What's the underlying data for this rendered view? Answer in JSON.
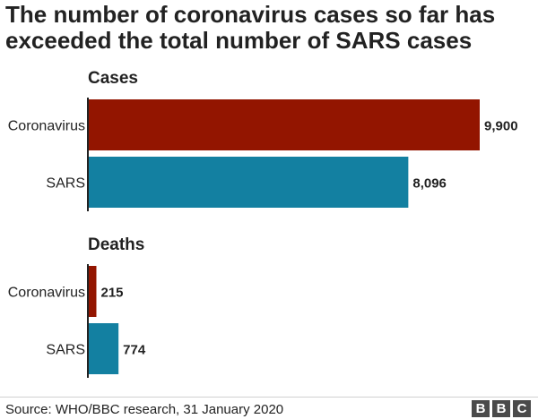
{
  "title": "The number of coronavirus cases so far has exceeded the total number of SARS cases",
  "source": "Source: WHO/BBC research, 31 January 2020",
  "logo": [
    "B",
    "B",
    "C"
  ],
  "colors": {
    "coronavirus": "#931500",
    "sars": "#1380a1",
    "axis": "#222222"
  },
  "chart_data": [
    {
      "type": "bar",
      "orientation": "horizontal",
      "title": "Cases",
      "categories": [
        "Coronavirus",
        "SARS"
      ],
      "values": [
        9900,
        8096
      ],
      "value_labels": [
        "9,900",
        "8,096"
      ],
      "xlim": [
        0,
        9900
      ]
    },
    {
      "type": "bar",
      "orientation": "horizontal",
      "title": "Deaths",
      "categories": [
        "Coronavirus",
        "SARS"
      ],
      "values": [
        215,
        774
      ],
      "value_labels": [
        "215",
        "774"
      ],
      "xlim": [
        0,
        9900
      ]
    }
  ]
}
